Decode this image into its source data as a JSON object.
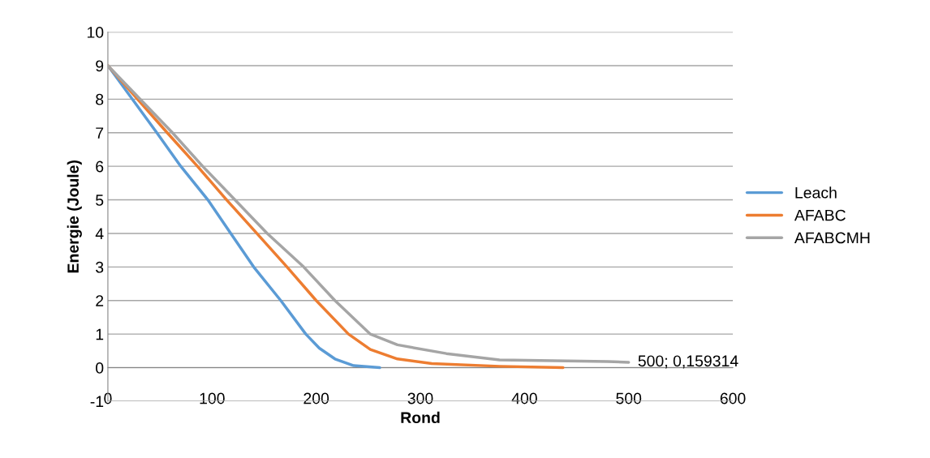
{
  "chart_data": {
    "type": "line",
    "xlabel": "Rond",
    "ylabel": "Energie (Joule)",
    "series": [
      {
        "name": "Leach",
        "color": "#5b9bd5",
        "x": [
          0,
          47,
          70,
          96,
          118,
          140,
          166,
          190,
          203,
          218,
          236,
          261
        ],
        "values": [
          9,
          7,
          6,
          5,
          4,
          3,
          2,
          1,
          0.58,
          0.26,
          0.06,
          0
        ]
      },
      {
        "name": "AFABC",
        "color": "#ed7d31",
        "x": [
          0,
          57,
          86,
          114,
          143,
          172,
          200,
          231,
          252,
          278,
          311,
          376,
          437
        ],
        "values": [
          9,
          7,
          6,
          5,
          4,
          3,
          2,
          1,
          0.54,
          0.26,
          0.12,
          0.04,
          0
        ]
      },
      {
        "name": "AFABCMH",
        "color": "#a5a5a5",
        "x": [
          0,
          62,
          91,
          122,
          153,
          188,
          218,
          252,
          278,
          325,
          376,
          480,
          500
        ],
        "values": [
          9,
          7,
          6,
          5,
          4,
          3,
          2,
          1,
          0.68,
          0.42,
          0.23,
          0.18,
          0.159314
        ]
      }
    ],
    "annotations": [
      {
        "text": "500; 0,159314",
        "x": 500,
        "y": 0.159314
      }
    ],
    "xlim": [
      0,
      600
    ],
    "xticks": [
      0,
      100,
      200,
      300,
      400,
      500,
      600
    ],
    "ylim": [
      -1,
      10
    ],
    "yticks": [
      -1,
      0,
      1,
      2,
      3,
      4,
      5,
      6,
      7,
      8,
      9,
      10
    ],
    "grid": "y",
    "legend": "right",
    "marker": "none",
    "line_style": "solid"
  }
}
